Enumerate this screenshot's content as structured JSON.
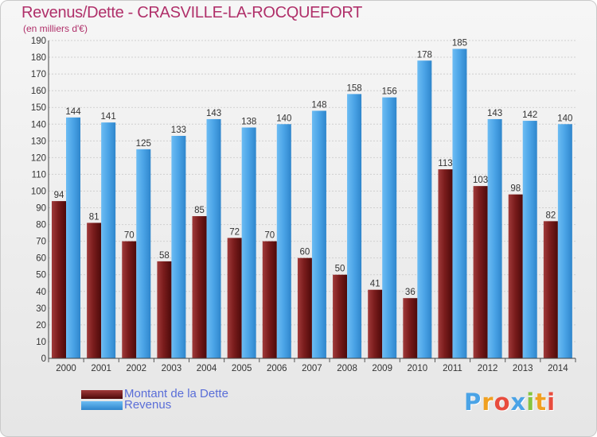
{
  "header": {
    "title": "Revenus/Dette - CRASVILLE-LA-ROCQUEFORT",
    "subtitle": "(en milliers d'€)"
  },
  "legend": {
    "placement": "bottom-left",
    "items": [
      {
        "label": "Montant de la Dette",
        "color": "#7a1c1c"
      },
      {
        "label": "Revenus",
        "color": "#4aa3e6"
      }
    ]
  },
  "logo": {
    "text": "Proxiti",
    "colors": [
      "#4aa3e6",
      "#f0a020",
      "#e84c3d",
      "#4aa3e6",
      "#86c440",
      "#f0a020",
      "#e84c3d"
    ]
  },
  "chart_data": {
    "type": "bar",
    "categories": [
      "2000",
      "2001",
      "2002",
      "2003",
      "2004",
      "2005",
      "2006",
      "2007",
      "2008",
      "2009",
      "2010",
      "2011",
      "2012",
      "2013",
      "2014"
    ],
    "series": [
      {
        "name": "Montant de la Dette",
        "values": [
          94,
          81,
          70,
          58,
          85,
          72,
          70,
          60,
          50,
          41,
          36,
          113,
          103,
          98,
          82
        ],
        "color": "#7a1c1c"
      },
      {
        "name": "Revenus",
        "values": [
          144,
          141,
          125,
          133,
          143,
          138,
          140,
          148,
          158,
          156,
          178,
          185,
          143,
          142,
          140
        ],
        "color": "#4aa3e6"
      }
    ],
    "ylim": [
      0,
      190
    ],
    "ytick_step": 10,
    "grid": true,
    "xlabel": "",
    "ylabel": ""
  }
}
